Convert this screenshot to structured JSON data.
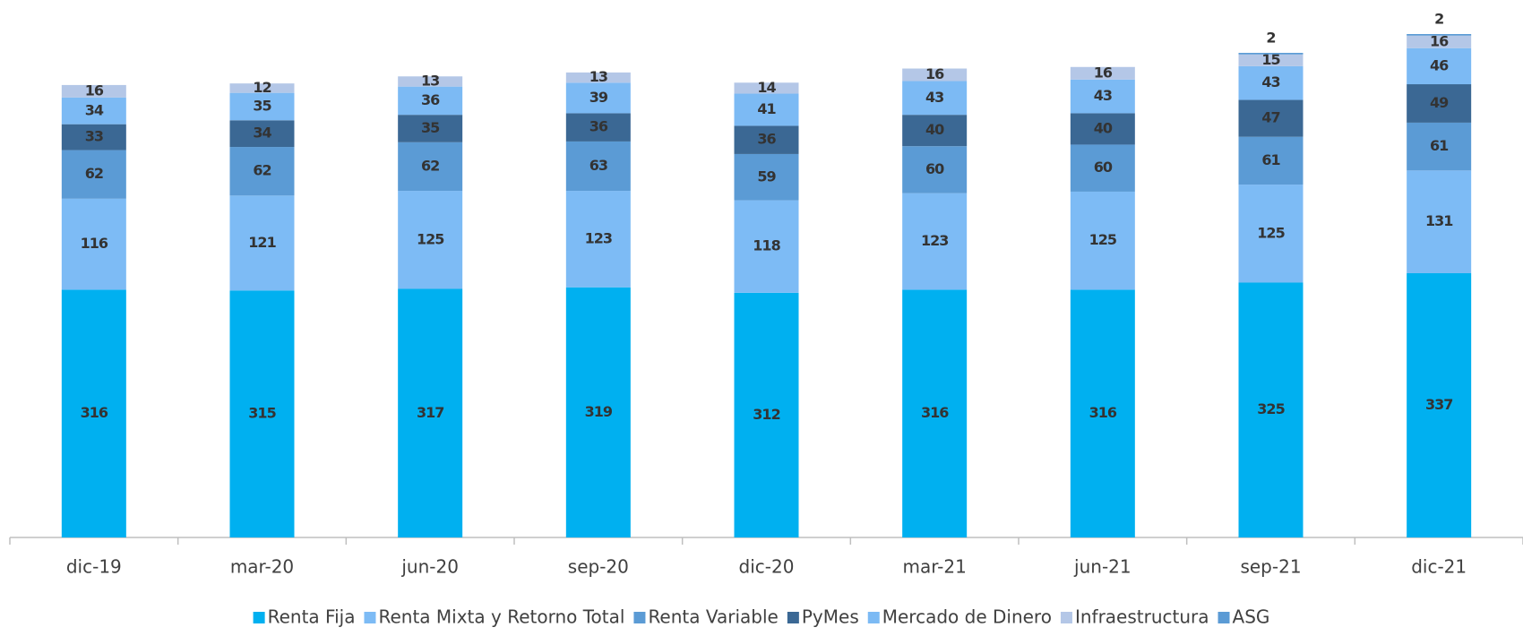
{
  "chart_data": {
    "type": "stacked_bar",
    "categories": [
      "dic-19",
      "mar-20",
      "jun-20",
      "sep-20",
      "dic-20",
      "mar-21",
      "jun-21",
      "sep-21",
      "dic-21"
    ],
    "series": [
      {
        "name": "Renta Fija",
        "color": "#00b0f0",
        "values": [
          316,
          315,
          317,
          319,
          312,
          316,
          316,
          325,
          337
        ]
      },
      {
        "name": "Renta Mixta y Retorno Total",
        "color": "#7dbbf5",
        "values": [
          116,
          121,
          125,
          123,
          118,
          123,
          125,
          125,
          131
        ]
      },
      {
        "name": "Renta Variable",
        "color": "#5b9bd5",
        "values": [
          62,
          62,
          62,
          63,
          59,
          60,
          60,
          61,
          61
        ]
      },
      {
        "name": "PyMes",
        "color": "#3b6894",
        "values": [
          33,
          34,
          35,
          36,
          36,
          40,
          40,
          47,
          49
        ]
      },
      {
        "name": "Mercado de Dinero",
        "color": "#7cbaf4",
        "values": [
          34,
          35,
          36,
          39,
          41,
          43,
          43,
          43,
          46
        ]
      },
      {
        "name": "Infraestructura",
        "color": "#b4c7e7",
        "values": [
          16,
          12,
          13,
          13,
          14,
          16,
          16,
          15,
          16
        ]
      },
      {
        "name": "ASG",
        "color": "#5b9bd5",
        "values": [
          null,
          null,
          null,
          null,
          null,
          null,
          null,
          2,
          2
        ]
      }
    ]
  }
}
